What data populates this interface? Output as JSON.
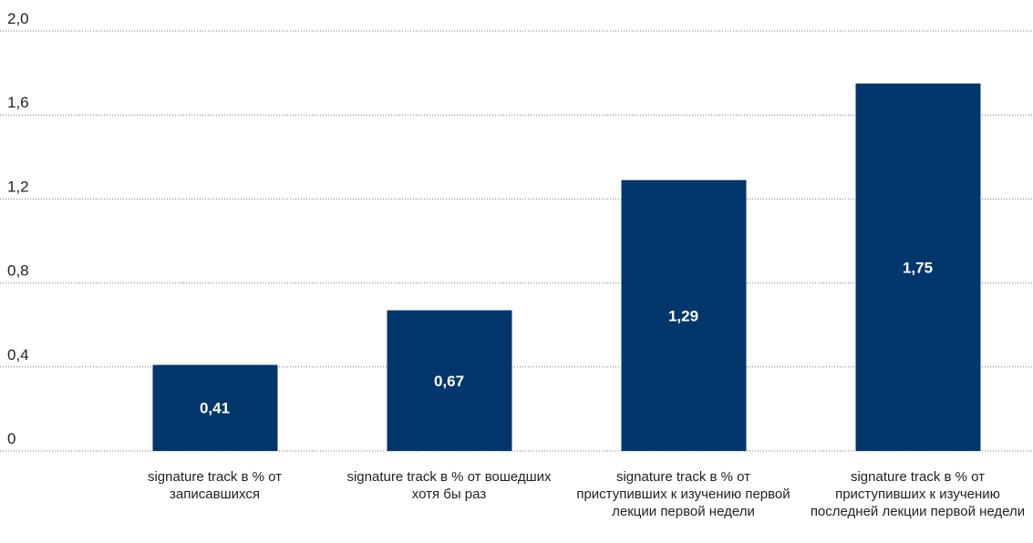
{
  "chart_data": {
    "type": "bar",
    "categories": [
      "signature track в % от записавшихся",
      "signature track в % от вошедших хотя бы раз",
      "signature track в % от приступивших к изучению первой лекции первой недели",
      "signature track в % от приступивших к изучению последней лекции первой недели"
    ],
    "values": [
      0.41,
      0.67,
      1.29,
      1.75
    ],
    "value_labels": [
      "0,41",
      "0,67",
      "1,29",
      "1,75"
    ],
    "color": "#03376b",
    "ylim": [
      0,
      2
    ],
    "yticks": [
      0,
      {
        "value": 0.4,
        "label": "0,4"
      },
      {
        "value": 0.8,
        "label": "0,8"
      },
      {
        "value": 1.2,
        "label": "1,2"
      },
      {
        "value": 1.6,
        "label": "1,6"
      },
      {
        "value": 2,
        "label": "2,0"
      }
    ],
    "grid": true
  }
}
